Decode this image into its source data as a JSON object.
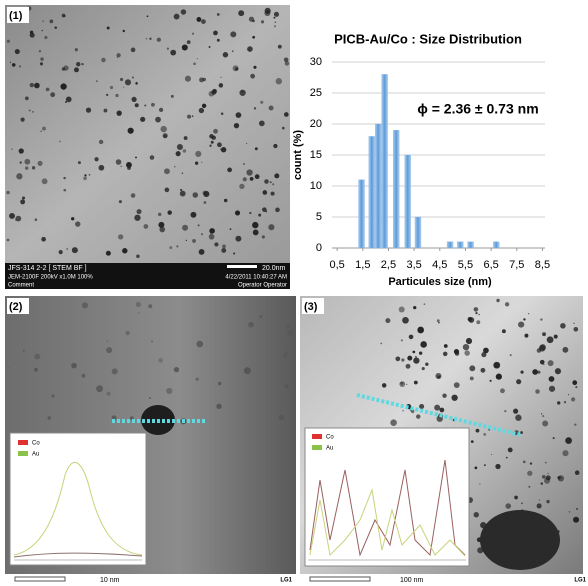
{
  "panels": {
    "p1": {
      "label": "(1)",
      "info1": "JFS-314  2-2 [ STEM BF ]",
      "info2": "JEM-2100F 200kV x1.0M 100%",
      "info3": "Comment",
      "scale": "20.0nm",
      "date": "4/22/2011 10:40:27 AM",
      "operator": "Operator Operator"
    },
    "p2": {
      "label": "(2)",
      "scale": "10 nm",
      "corner": "LG1",
      "legend": [
        "Co",
        "Au"
      ]
    },
    "p3": {
      "label": "(3)",
      "scale": "100 nm",
      "corner": "LG1",
      "legend": [
        "Co",
        "Au"
      ]
    }
  },
  "chart_data": {
    "type": "bar",
    "title": "PICB-Au/Co : Size Distribution",
    "annotation": "ϕ = 2.36 ± 0.73 nm",
    "x_label": "Particules size (nm)",
    "y_label": "count (%)",
    "color": "#7fb2e5",
    "x": [
      1.45,
      1.85,
      2.1,
      2.35,
      2.8,
      3.25,
      3.65,
      4.9,
      5.3,
      5.7,
      6.7
    ],
    "values": [
      11,
      18,
      20,
      28,
      19,
      15,
      5,
      1,
      1,
      1,
      1
    ],
    "xlim": [
      0.3,
      8.6
    ],
    "ylim": [
      0,
      30
    ],
    "xticks": [
      {
        "value": 0.5,
        "label": "0,5"
      },
      {
        "value": 1.5,
        "label": "1,5"
      },
      {
        "value": 2.5,
        "label": "2,5"
      },
      {
        "value": 3.5,
        "label": "3,5"
      },
      {
        "value": 4.5,
        "label": "4,5"
      },
      {
        "value": 5.5,
        "label": "5,5"
      },
      {
        "value": 6.5,
        "label": "6,5"
      },
      {
        "value": 7.5,
        "label": "7,5"
      },
      {
        "value": 8.5,
        "label": "8,5"
      }
    ],
    "yticks": [
      0,
      5,
      10,
      15,
      20,
      25,
      30
    ],
    "grid": true
  }
}
